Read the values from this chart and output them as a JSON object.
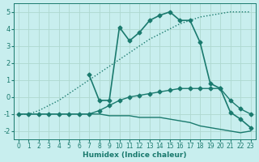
{
  "xlabel": "Humidex (Indice chaleur)",
  "xlim": [
    -0.5,
    23.5
  ],
  "ylim": [
    -2.5,
    5.5
  ],
  "yticks": [
    -2,
    -1,
    0,
    1,
    2,
    3,
    4,
    5
  ],
  "xticks": [
    0,
    1,
    2,
    3,
    4,
    5,
    6,
    7,
    8,
    9,
    10,
    11,
    12,
    13,
    14,
    15,
    16,
    17,
    18,
    19,
    20,
    21,
    22,
    23
  ],
  "bg_color": "#c8eeee",
  "grid_color": "#aed8d0",
  "line_color": "#1a7a6e",
  "series": {
    "dotted": {
      "x": [
        0,
        1,
        2,
        3,
        4,
        5,
        6,
        7,
        8,
        9,
        10,
        11,
        12,
        13,
        14,
        15,
        16,
        17,
        18,
        19,
        20,
        21,
        22,
        23
      ],
      "y": [
        -1.0,
        -1.0,
        -0.8,
        -0.5,
        -0.2,
        0.2,
        0.6,
        1.0,
        1.4,
        1.8,
        2.2,
        2.6,
        3.0,
        3.4,
        3.7,
        4.0,
        4.3,
        4.5,
        4.7,
        4.8,
        4.9,
        5.0,
        5.0,
        5.0
      ],
      "linestyle": "dotted",
      "marker": null,
      "lw": 1.0
    },
    "peak": {
      "x": [
        7,
        8,
        9,
        10,
        11,
        12,
        13,
        14,
        15,
        16,
        17,
        18,
        19,
        20,
        21,
        22,
        23
      ],
      "y": [
        1.3,
        -0.2,
        -0.2,
        4.1,
        3.3,
        3.8,
        4.5,
        4.8,
        5.0,
        4.5,
        4.5,
        3.2,
        0.8,
        0.5,
        -0.9,
        -1.3,
        -1.8
      ],
      "linestyle": "solid",
      "marker": "D",
      "lw": 1.2,
      "ms": 2.5
    },
    "middle": {
      "x": [
        0,
        1,
        2,
        3,
        4,
        5,
        6,
        7,
        8,
        9,
        10,
        11,
        12,
        13,
        14,
        15,
        16,
        17,
        18,
        19,
        20,
        21,
        22,
        23
      ],
      "y": [
        -1.0,
        -1.0,
        -1.0,
        -1.0,
        -1.0,
        -1.0,
        -1.0,
        -1.0,
        -0.8,
        -0.5,
        -0.2,
        0.0,
        0.1,
        0.2,
        0.3,
        0.4,
        0.5,
        0.5,
        0.5,
        0.5,
        0.5,
        -0.2,
        -0.7,
        -1.0
      ],
      "linestyle": "solid",
      "marker": "D",
      "lw": 1.0,
      "ms": 2.5
    },
    "bottom": {
      "x": [
        0,
        1,
        2,
        3,
        4,
        5,
        6,
        7,
        8,
        9,
        10,
        11,
        12,
        13,
        14,
        15,
        16,
        17,
        18,
        19,
        20,
        21,
        22,
        23
      ],
      "y": [
        -1.0,
        -1.0,
        -1.0,
        -1.0,
        -1.0,
        -1.0,
        -1.0,
        -1.0,
        -1.0,
        -1.1,
        -1.1,
        -1.1,
        -1.2,
        -1.2,
        -1.2,
        -1.3,
        -1.4,
        -1.5,
        -1.7,
        -1.8,
        -1.9,
        -2.0,
        -2.1,
        -2.0
      ],
      "linestyle": "solid",
      "marker": null,
      "lw": 1.0
    }
  }
}
